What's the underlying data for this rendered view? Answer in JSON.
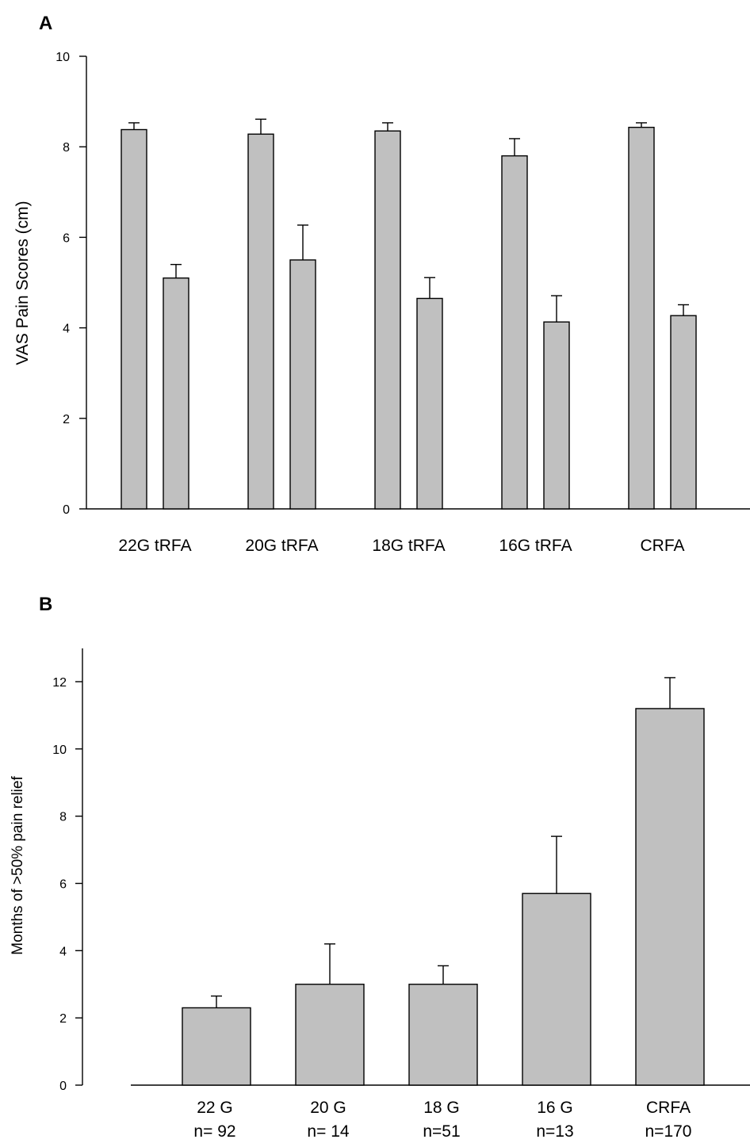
{
  "chart_data": [
    {
      "panel": "A",
      "type": "bar",
      "ylabel": "VAS Pain Scores (cm)",
      "ylim": [
        0,
        10
      ],
      "yticks": [
        "0",
        "2",
        "4",
        "6",
        "8",
        "10"
      ],
      "categories": [
        "22G tRFA",
        "20G tRFA",
        "18G tRFA",
        "16G tRFA",
        "CRFA"
      ],
      "series": [
        {
          "values": [
            8.38,
            8.28,
            8.35,
            7.8,
            8.43
          ],
          "errors": [
            0.15,
            0.33,
            0.18,
            0.38,
            0.1
          ]
        },
        {
          "values": [
            5.1,
            5.5,
            4.65,
            4.13,
            4.27
          ],
          "errors": [
            0.3,
            0.77,
            0.46,
            0.58,
            0.24
          ]
        }
      ],
      "bar_color": "#c0c0c0",
      "grid": false
    },
    {
      "panel": "B",
      "type": "bar",
      "ylabel": "Months of >50% pain relief",
      "ylim": [
        0,
        13
      ],
      "yticks": [
        "0",
        "2",
        "4",
        "6",
        "8",
        "10",
        "12"
      ],
      "categories": [
        "22 G",
        "20 G",
        "18 G",
        "16 G",
        "CRFA"
      ],
      "sample_sizes": [
        "n= 92",
        "n= 14",
        "n=51",
        "n=13",
        "n=170"
      ],
      "values": [
        2.3,
        3.0,
        3.0,
        5.7,
        11.2
      ],
      "errors": [
        0.35,
        1.2,
        0.55,
        1.7,
        0.92
      ],
      "bar_color": "#c0c0c0",
      "grid": false
    }
  ]
}
